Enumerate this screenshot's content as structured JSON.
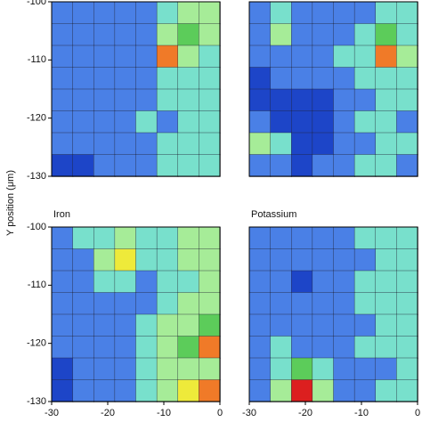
{
  "ylabel": "Y position (μm)",
  "level_colors": [
    "#1d45c8",
    "#4a80e6",
    "#78e0cc",
    "#a6ec98",
    "#5ccc5a",
    "#eeea3a",
    "#f07a28",
    "#dc1f1f"
  ],
  "chart_data": [
    {
      "type": "contour",
      "xlim": [
        -30,
        0
      ],
      "ylim": [
        -130,
        -100
      ],
      "yticks": [
        -100,
        -110,
        -120,
        -130
      ],
      "z": [
        [
          1,
          1,
          1,
          1,
          1,
          2,
          3,
          3
        ],
        [
          1,
          1,
          1,
          1,
          1,
          3,
          4,
          3
        ],
        [
          1,
          1,
          1,
          1,
          1,
          6,
          3,
          2
        ],
        [
          1,
          1,
          1,
          1,
          1,
          2,
          2,
          2
        ],
        [
          1,
          1,
          1,
          1,
          1,
          2,
          2,
          2
        ],
        [
          1,
          1,
          1,
          1,
          2,
          1,
          2,
          2
        ],
        [
          1,
          1,
          1,
          1,
          1,
          2,
          2,
          2
        ],
        [
          0,
          0,
          1,
          1,
          1,
          2,
          2,
          2
        ]
      ]
    },
    {
      "type": "contour",
      "xlim": [
        -30,
        0
      ],
      "ylim": [
        -130,
        -100
      ],
      "z": [
        [
          1,
          2,
          1,
          1,
          1,
          1,
          2,
          2
        ],
        [
          1,
          3,
          1,
          1,
          1,
          2,
          4,
          2
        ],
        [
          1,
          1,
          1,
          1,
          2,
          2,
          6,
          3
        ],
        [
          0,
          1,
          1,
          1,
          1,
          2,
          2,
          2
        ],
        [
          0,
          0,
          0,
          0,
          1,
          1,
          2,
          2
        ],
        [
          1,
          0,
          0,
          0,
          1,
          2,
          2,
          1
        ],
        [
          3,
          2,
          0,
          0,
          1,
          1,
          2,
          2
        ],
        [
          1,
          1,
          0,
          1,
          1,
          2,
          2,
          1
        ]
      ]
    },
    {
      "type": "contour",
      "title": "Iron",
      "xlim": [
        -30,
        0
      ],
      "ylim": [
        -130,
        -100
      ],
      "yticks": [
        -100,
        -110,
        -120,
        -130
      ],
      "xticks": [
        -30,
        -20,
        -10,
        0
      ],
      "z": [
        [
          1,
          2,
          2,
          3,
          2,
          2,
          3,
          3
        ],
        [
          1,
          1,
          3,
          5,
          2,
          2,
          3,
          3
        ],
        [
          1,
          1,
          2,
          2,
          1,
          2,
          2,
          3
        ],
        [
          1,
          1,
          1,
          1,
          1,
          2,
          3,
          3
        ],
        [
          1,
          1,
          1,
          1,
          2,
          3,
          3,
          4
        ],
        [
          1,
          1,
          1,
          1,
          2,
          3,
          4,
          6
        ],
        [
          0,
          1,
          1,
          1,
          2,
          3,
          3,
          3
        ],
        [
          0,
          1,
          1,
          1,
          2,
          3,
          5,
          6
        ]
      ]
    },
    {
      "type": "contour",
      "title": "Potassium",
      "xlim": [
        -30,
        0
      ],
      "ylim": [
        -130,
        -100
      ],
      "xticks": [
        -30,
        -20,
        -10,
        0
      ],
      "z": [
        [
          1,
          1,
          1,
          1,
          1,
          2,
          2,
          2
        ],
        [
          1,
          1,
          1,
          1,
          1,
          1,
          2,
          2
        ],
        [
          1,
          1,
          0,
          1,
          1,
          2,
          2,
          2
        ],
        [
          1,
          1,
          1,
          1,
          1,
          2,
          2,
          2
        ],
        [
          1,
          1,
          1,
          1,
          1,
          1,
          2,
          2
        ],
        [
          1,
          2,
          1,
          1,
          1,
          2,
          2,
          2
        ],
        [
          1,
          2,
          4,
          2,
          1,
          1,
          1,
          2
        ],
        [
          1,
          3,
          7,
          3,
          1,
          1,
          2,
          2
        ]
      ]
    }
  ]
}
